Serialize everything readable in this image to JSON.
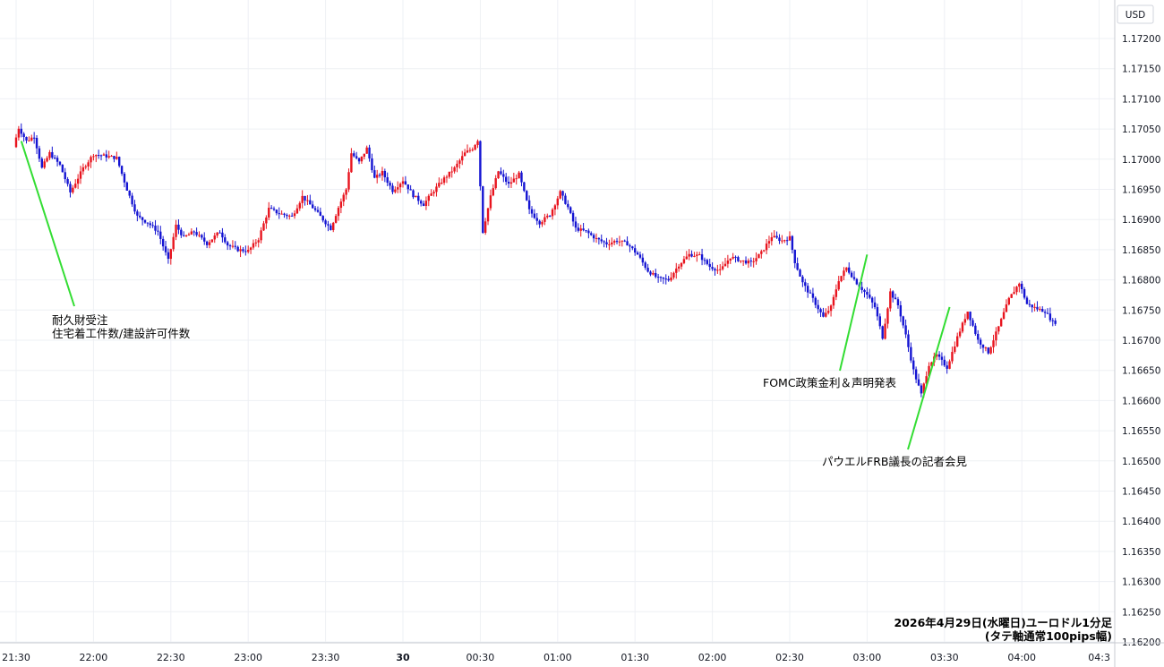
{
  "chart_data": {
    "type": "candlestick",
    "currency_label": "USD",
    "caption_line1": "2026年4月29日(水曜日)ユーロドル1分足",
    "caption_line2": "(タテ軸通常100pips幅)",
    "y_ticks": [
      "1.17200",
      "1.17150",
      "1.17100",
      "1.17050",
      "1.17000",
      "1.16950",
      "1.16900",
      "1.16850",
      "1.16800",
      "1.16750",
      "1.16700",
      "1.16650",
      "1.16600",
      "1.16550",
      "1.16500",
      "1.16450",
      "1.16400",
      "1.16350",
      "1.16300",
      "1.16250",
      "1.16200"
    ],
    "ylim": [
      1.1619,
      1.1724
    ],
    "x_ticks": [
      {
        "label": "21:30",
        "t": 0
      },
      {
        "label": "22:00",
        "t": 30
      },
      {
        "label": "22:30",
        "t": 60
      },
      {
        "label": "23:00",
        "t": 90
      },
      {
        "label": "23:30",
        "t": 120
      },
      {
        "label": "30",
        "t": 150,
        "bold": true
      },
      {
        "label": "00:30",
        "t": 180
      },
      {
        "label": "01:00",
        "t": 210
      },
      {
        "label": "01:30",
        "t": 240
      },
      {
        "label": "02:00",
        "t": 270
      },
      {
        "label": "02:30",
        "t": 300
      },
      {
        "label": "03:00",
        "t": 330
      },
      {
        "label": "03:30",
        "t": 360
      },
      {
        "label": "04:00",
        "t": 390
      },
      {
        "label": "04:3",
        "t": 420
      }
    ],
    "up_color": "#e8141e",
    "down_color": "#1414d2",
    "annotation_color": "#33dd33",
    "price_path": [
      [
        0,
        1.1702
      ],
      [
        2,
        1.17052
      ],
      [
        5,
        1.1703
      ],
      [
        8,
        1.17038
      ],
      [
        11,
        1.16985
      ],
      [
        14,
        1.1701
      ],
      [
        18,
        1.1699
      ],
      [
        22,
        1.16945
      ],
      [
        27,
        1.16985
      ],
      [
        31,
        1.17008
      ],
      [
        36,
        1.17005
      ],
      [
        40,
        1.17002
      ],
      [
        44,
        1.1695
      ],
      [
        48,
        1.16905
      ],
      [
        52,
        1.16895
      ],
      [
        56,
        1.1688
      ],
      [
        60,
        1.16832
      ],
      [
        63,
        1.1689
      ],
      [
        66,
        1.1687
      ],
      [
        70,
        1.1688
      ],
      [
        75,
        1.1686
      ],
      [
        80,
        1.1688
      ],
      [
        83,
        1.16858
      ],
      [
        87,
        1.1685
      ],
      [
        91,
        1.16848
      ],
      [
        95,
        1.16868
      ],
      [
        99,
        1.16918
      ],
      [
        103,
        1.1691
      ],
      [
        108,
        1.16905
      ],
      [
        112,
        1.16938
      ],
      [
        116,
        1.1692
      ],
      [
        120,
        1.169
      ],
      [
        123,
        1.16885
      ],
      [
        126,
        1.1692
      ],
      [
        129,
        1.1695
      ],
      [
        131,
        1.1701
      ],
      [
        134,
        1.16995
      ],
      [
        137,
        1.17018
      ],
      [
        140,
        1.16968
      ],
      [
        143,
        1.16978
      ],
      [
        147,
        1.16948
      ],
      [
        151,
        1.16965
      ],
      [
        155,
        1.1694
      ],
      [
        159,
        1.16925
      ],
      [
        163,
        1.16948
      ],
      [
        167,
        1.16968
      ],
      [
        171,
        1.16985
      ],
      [
        175,
        1.1701
      ],
      [
        178,
        1.17018
      ],
      [
        180,
        1.17032
      ],
      [
        182,
        1.1688
      ],
      [
        185,
        1.16938
      ],
      [
        188,
        1.1698
      ],
      [
        192,
        1.16958
      ],
      [
        196,
        1.16975
      ],
      [
        200,
        1.16915
      ],
      [
        204,
        1.16895
      ],
      [
        208,
        1.16908
      ],
      [
        212,
        1.16945
      ],
      [
        215,
        1.1692
      ],
      [
        218,
        1.16885
      ],
      [
        222,
        1.1688
      ],
      [
        226,
        1.16868
      ],
      [
        230,
        1.1686
      ],
      [
        234,
        1.16865
      ],
      [
        238,
        1.1686
      ],
      [
        242,
        1.16842
      ],
      [
        246,
        1.16815
      ],
      [
        250,
        1.16802
      ],
      [
        254,
        1.168
      ],
      [
        258,
        1.16825
      ],
      [
        262,
        1.16842
      ],
      [
        266,
        1.1684
      ],
      [
        270,
        1.16822
      ],
      [
        274,
        1.16815
      ],
      [
        278,
        1.16838
      ],
      [
        282,
        1.16832
      ],
      [
        286,
        1.16828
      ],
      [
        290,
        1.16845
      ],
      [
        294,
        1.16872
      ],
      [
        298,
        1.16865
      ],
      [
        301,
        1.1687
      ],
      [
        303,
        1.1683
      ],
      [
        306,
        1.16795
      ],
      [
        310,
        1.16768
      ],
      [
        314,
        1.16738
      ],
      [
        317,
        1.16755
      ],
      [
        320,
        1.168
      ],
      [
        323,
        1.1682
      ],
      [
        327,
        1.16795
      ],
      [
        331,
        1.16775
      ],
      [
        334,
        1.16755
      ],
      [
        337,
        1.16705
      ],
      [
        340,
        1.1678
      ],
      [
        343,
        1.16758
      ],
      [
        346,
        1.16708
      ],
      [
        349,
        1.1665
      ],
      [
        352,
        1.1661
      ],
      [
        355,
        1.1666
      ],
      [
        358,
        1.16675
      ],
      [
        362,
        1.16655
      ],
      [
        366,
        1.16705
      ],
      [
        370,
        1.16748
      ],
      [
        374,
        1.167
      ],
      [
        378,
        1.1668
      ],
      [
        382,
        1.16722
      ],
      [
        386,
        1.16768
      ],
      [
        390,
        1.16795
      ],
      [
        393,
        1.1676
      ],
      [
        397,
        1.16752
      ],
      [
        400,
        1.16748
      ],
      [
        403,
        1.1673
      ]
    ],
    "annotations": [
      {
        "lines": [
          "耐久財受注",
          "住宅着工件数/建設許可件数"
        ],
        "t_anchor": 2,
        "price_anchor": 1.1703,
        "line_end": [
          83,
          342
        ],
        "text_pos": [
          58,
          362
        ]
      },
      {
        "lines": [
          "FOMC政策金利＆声明発表"
        ],
        "t_anchor": 330,
        "price_anchor": 1.16842,
        "line_end": [
          938,
          414
        ],
        "text_pos": [
          852,
          432
        ]
      },
      {
        "lines": [
          "パウエルFRB議長の記者会見"
        ],
        "t_anchor": 362,
        "price_anchor": 1.16755,
        "line_end": [
          1014,
          502
        ],
        "text_pos": [
          918,
          520
        ]
      }
    ]
  }
}
